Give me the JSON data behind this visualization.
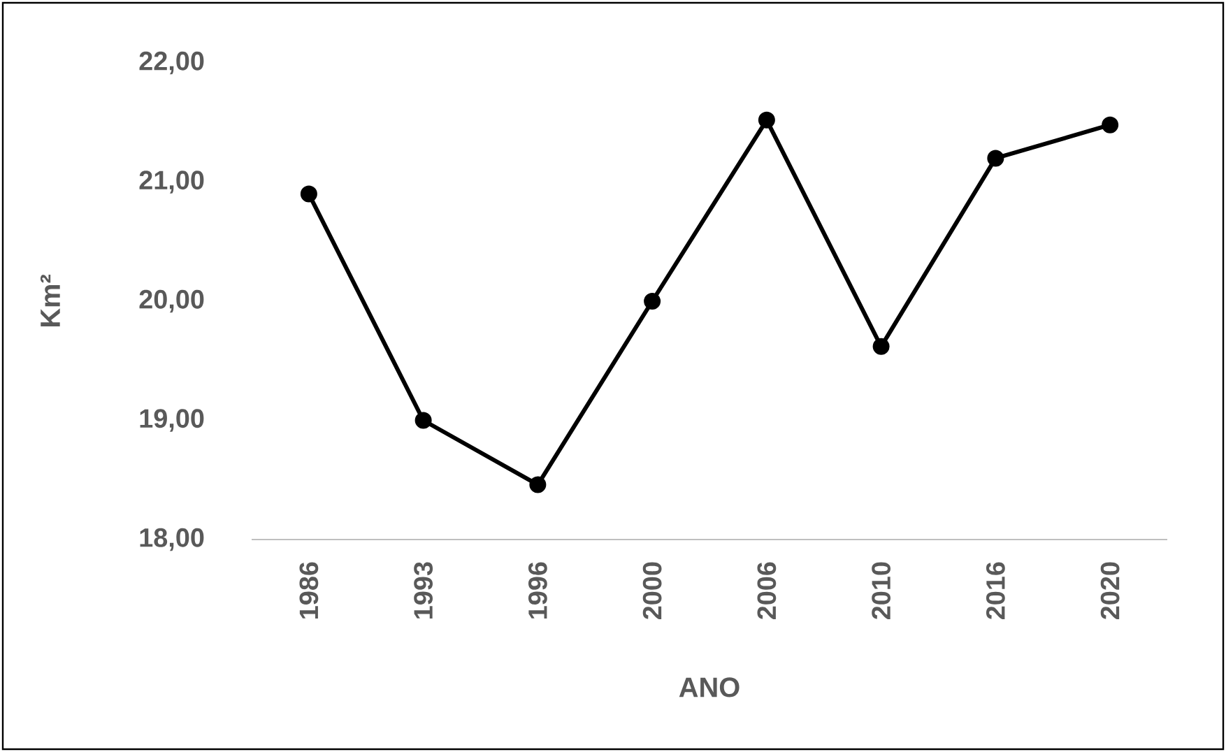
{
  "chart_data": {
    "type": "line",
    "xlabel": "ANO",
    "ylabel": "Km²",
    "categories": [
      "1986",
      "1993",
      "1996",
      "2000",
      "2006",
      "2010",
      "2016",
      "2020"
    ],
    "values": [
      20.9,
      19.0,
      18.46,
      20.0,
      21.52,
      19.62,
      21.2,
      21.48
    ],
    "color": "#000000",
    "marker": "circle",
    "line_style": "solid",
    "grid": false,
    "ylim": [
      18,
      22
    ],
    "yticks": [
      {
        "value": 18,
        "label": "18,00"
      },
      {
        "value": 19,
        "label": "19,00"
      },
      {
        "value": 20,
        "label": "20,00"
      },
      {
        "value": 21,
        "label": "21,00"
      },
      {
        "value": 22,
        "label": "22,00"
      }
    ]
  }
}
